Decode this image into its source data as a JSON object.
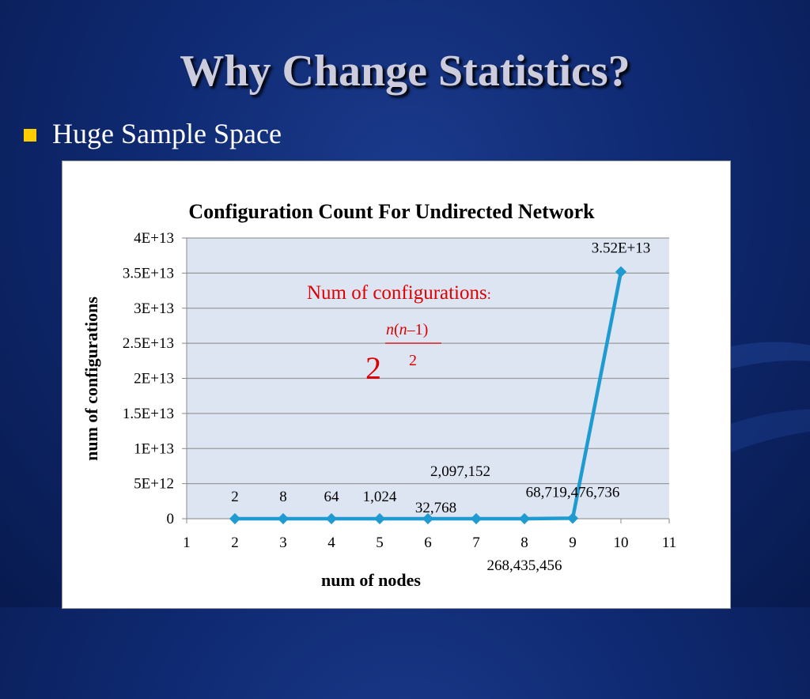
{
  "slide": {
    "title": "Why Change Statistics?",
    "bullet": "Huge Sample Space"
  },
  "formula": {
    "label": "Num of  configurations",
    "colon": ":",
    "base": "2",
    "exp_num_n1": "n",
    "exp_num_paren_open": "(",
    "exp_num_n2": "n",
    "exp_num_minus": "–",
    "exp_num_one": "1",
    "exp_num_paren_close": ")",
    "exp_den": "2"
  },
  "colors": {
    "series": "#1f9bd1",
    "formula": "#dd0000",
    "plot_bg": "#dde5f2"
  },
  "chart_data": {
    "type": "line",
    "title": "Configuration Count For Undirected Network",
    "xlabel": "num of nodes",
    "ylabel": "num of configurations",
    "xlim": [
      1,
      11
    ],
    "ylim": [
      0,
      40000000000000
    ],
    "x_ticks": [
      "1",
      "2",
      "3",
      "4",
      "5",
      "6",
      "7",
      "8",
      "9",
      "10",
      "11"
    ],
    "y_ticks": [
      "0",
      "5E+12",
      "1E+13",
      "1.5E+13",
      "2E+13",
      "2.5E+13",
      "3E+13",
      "3.5E+13",
      "4E+13"
    ],
    "grid": true,
    "series": [
      {
        "x": [
          2,
          3,
          4,
          5,
          6,
          7,
          8,
          9,
          10
        ],
        "values": [
          2,
          8,
          64,
          1024,
          32768,
          2097152,
          268435456,
          68719476736,
          35184372088832
        ],
        "labels": [
          "2",
          "8",
          "64",
          "1,024",
          "32,768",
          "2,097,152",
          "268,435,456",
          "68,719,476,736",
          "3.52E+13"
        ]
      }
    ]
  }
}
